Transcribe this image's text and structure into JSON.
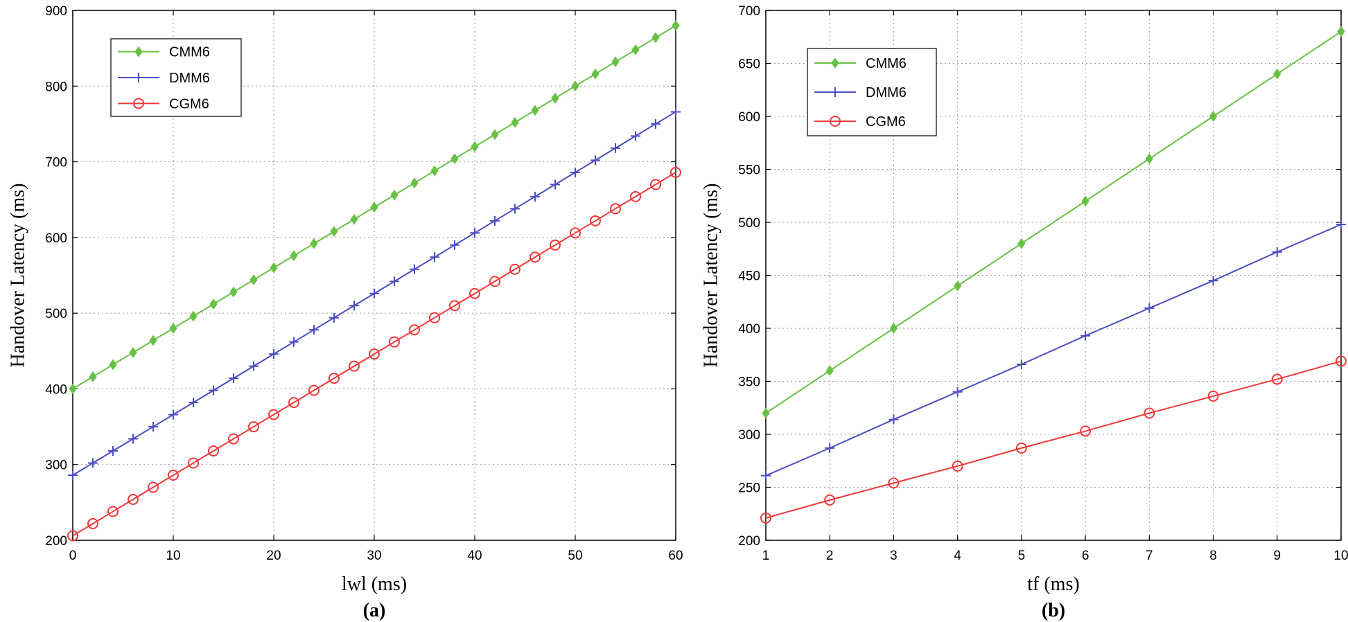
{
  "chart_data": [
    {
      "type": "line",
      "panel_label": "(a)",
      "xlabel": "lwl (ms)",
      "ylabel": "Handover Latency  (ms)",
      "xlim": [
        0,
        60
      ],
      "ylim": [
        200,
        900
      ],
      "xticks": [
        0,
        10,
        20,
        30,
        40,
        50,
        60
      ],
      "yticks": [
        200,
        300,
        400,
        500,
        600,
        700,
        800,
        900
      ],
      "grid": true,
      "legend_position": "top-left",
      "x": [
        0,
        2,
        4,
        6,
        8,
        10,
        12,
        14,
        16,
        18,
        20,
        22,
        24,
        26,
        28,
        30,
        32,
        34,
        36,
        38,
        40,
        42,
        44,
        46,
        48,
        50,
        52,
        54,
        56,
        58,
        60
      ],
      "series": [
        {
          "name": "CMM6",
          "marker": "diamond",
          "color": "#66c144",
          "values": [
            400,
            416,
            432,
            448,
            464,
            480,
            496,
            512,
            528,
            544,
            560,
            576,
            592,
            608,
            624,
            640,
            656,
            672,
            688,
            704,
            720,
            736,
            752,
            768,
            784,
            800,
            816,
            832,
            848,
            864,
            880
          ]
        },
        {
          "name": "DMM6",
          "marker": "plus",
          "color": "#4a4ec0",
          "values": [
            286,
            302,
            318,
            334,
            350,
            366,
            382,
            398,
            414,
            430,
            446,
            462,
            478,
            494,
            510,
            526,
            542,
            558,
            574,
            590,
            606,
            622,
            638,
            654,
            670,
            686,
            702,
            718,
            734,
            750,
            766
          ]
        },
        {
          "name": "CGM6",
          "marker": "circle",
          "color": "#f0393b",
          "values": [
            206,
            222,
            238,
            254,
            270,
            286,
            302,
            318,
            334,
            350,
            366,
            382,
            398,
            414,
            430,
            446,
            462,
            478,
            494,
            510,
            526,
            542,
            558,
            574,
            590,
            606,
            622,
            638,
            654,
            670,
            686
          ]
        }
      ]
    },
    {
      "type": "line",
      "panel_label": "(b)",
      "xlabel": "tf  (ms)",
      "ylabel": "Handover Latency  (ms)",
      "xlim": [
        1,
        10
      ],
      "ylim": [
        200,
        700
      ],
      "xticks": [
        1,
        2,
        3,
        4,
        5,
        6,
        7,
        8,
        9,
        10
      ],
      "yticks": [
        200,
        250,
        300,
        350,
        400,
        450,
        500,
        550,
        600,
        650,
        700
      ],
      "grid": true,
      "legend_position": "top-left",
      "x": [
        1,
        2,
        3,
        4,
        5,
        6,
        7,
        8,
        9,
        10
      ],
      "series": [
        {
          "name": "CMM6",
          "marker": "diamond",
          "color": "#66c144",
          "values": [
            320,
            360,
            400,
            440,
            480,
            520,
            560,
            600,
            640,
            680
          ]
        },
        {
          "name": "DMM6",
          "marker": "plus",
          "color": "#4a4ec0",
          "values": [
            261,
            287,
            314,
            340,
            366,
            393,
            419,
            445,
            472,
            498
          ]
        },
        {
          "name": "CGM6",
          "marker": "circle",
          "color": "#f0393b",
          "values": [
            221,
            238,
            254,
            270,
            287,
            303,
            320,
            336,
            352,
            369
          ]
        }
      ]
    }
  ]
}
